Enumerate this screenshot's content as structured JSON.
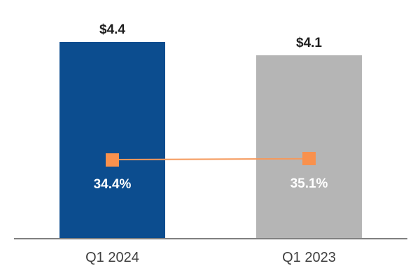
{
  "chart_data": {
    "type": "combo",
    "categories": [
      "Q1 2024",
      "Q1 2023"
    ],
    "series": [
      {
        "type": "bar",
        "values": [
          4.4,
          4.1
        ],
        "data_labels": [
          "$4.4",
          "$4.1"
        ],
        "colors": [
          "#0C4D8F",
          "#B5B5B5"
        ],
        "label_color": "#1F1F1F"
      },
      {
        "type": "line",
        "values": [
          34.4,
          35.1
        ],
        "data_labels": [
          "34.4%",
          "35.1%"
        ],
        "color": "#F9914D",
        "line_color": "#F5995C",
        "marker": "square",
        "label_color": "#FFFFFF"
      }
    ],
    "ylim_bar": [
      0,
      5.3
    ],
    "grid": false,
    "legend": false,
    "axis_line_color": "#808080",
    "category_label_color": "#404040",
    "background": "#FFFFFF"
  }
}
